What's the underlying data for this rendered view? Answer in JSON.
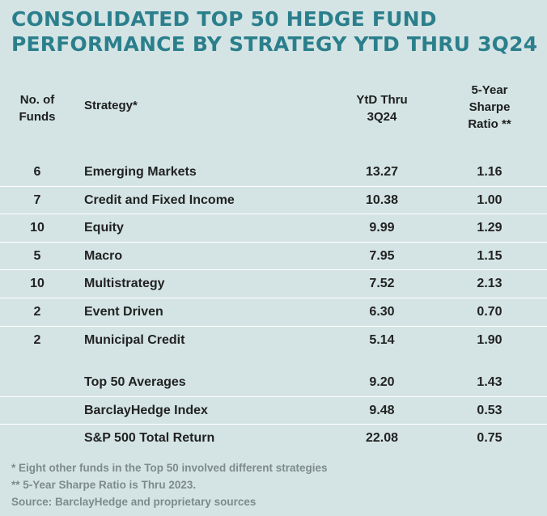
{
  "title": {
    "line1": "CONSOLIDATED TOP 50 HEDGE FUND",
    "line2": "PERFORMANCE BY STRATEGY YTD THRU 3Q24"
  },
  "headers": {
    "funds_line1": "No. of",
    "funds_line2": "Funds",
    "strategy": "Strategy*",
    "ytd_line1": "YtD Thru",
    "ytd_line2": "3Q24",
    "sharpe_line1": "5-Year",
    "sharpe_line2": "Sharpe",
    "sharpe_line3": "Ratio **"
  },
  "rows": [
    {
      "funds": "6",
      "strategy": "Emerging Markets",
      "ytd": "13.27",
      "sharpe": "1.16"
    },
    {
      "funds": "7",
      "strategy": "Credit and Fixed Income",
      "ytd": "10.38",
      "sharpe": "1.00"
    },
    {
      "funds": "10",
      "strategy": "Equity",
      "ytd": "9.99",
      "sharpe": "1.29"
    },
    {
      "funds": "5",
      "strategy": "Macro",
      "ytd": "7.95",
      "sharpe": "1.15"
    },
    {
      "funds": "10",
      "strategy": "Multistrategy",
      "ytd": "7.52",
      "sharpe": "2.13"
    },
    {
      "funds": "2",
      "strategy": "Event Driven",
      "ytd": "6.30",
      "sharpe": "0.70"
    },
    {
      "funds": "2",
      "strategy": "Municipal Credit",
      "ytd": "5.14",
      "sharpe": "1.90"
    }
  ],
  "summary": [
    {
      "funds": "",
      "strategy": "Top 50 Averages",
      "ytd": "9.20",
      "sharpe": "1.43"
    },
    {
      "funds": "",
      "strategy": "BarclayHedge Index",
      "ytd": "9.48",
      "sharpe": "0.53"
    },
    {
      "funds": "",
      "strategy": "S&P 500 Total Return",
      "ytd": "22.08",
      "sharpe": "0.75"
    }
  ],
  "footnotes": [
    "* Eight other funds in the Top 50 involved different strategies",
    "** 5-Year Sharpe Ratio is Thru 2023.",
    "Source: BarclayHedge and proprietary sources"
  ]
}
